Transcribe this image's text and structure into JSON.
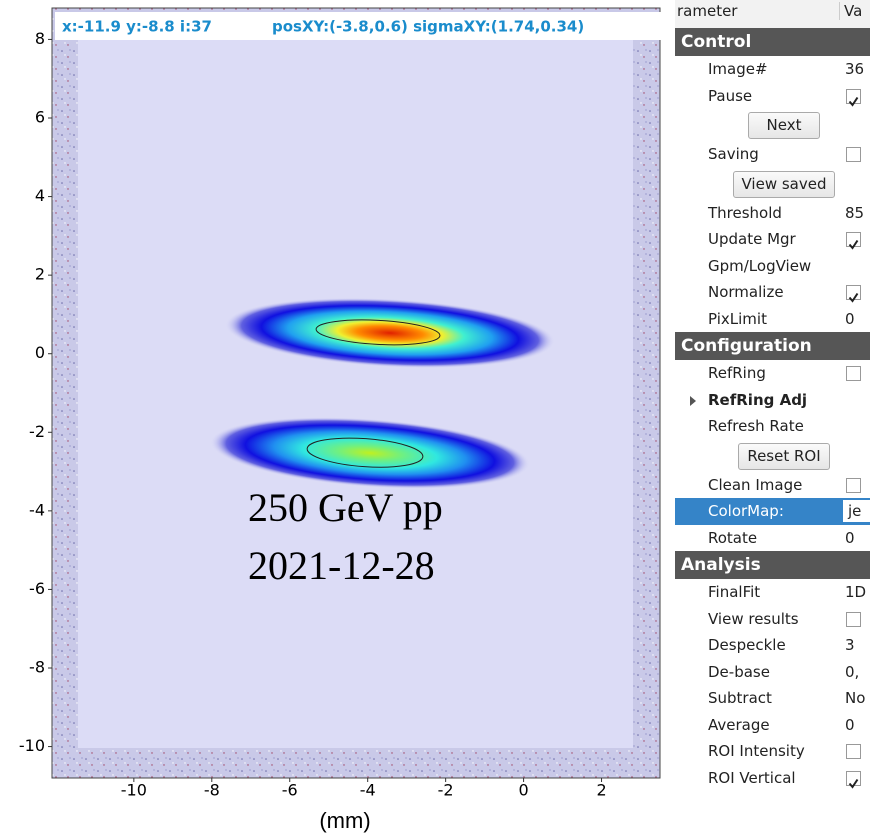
{
  "plot": {
    "info_left": "x:-11.9 y:-8.8 i:37",
    "info_right": "posXY:(-3.8,0.6) sigmaXY:(1.74,0.34)",
    "xlim": [
      -12.1,
      3.5
    ],
    "ylim": [
      -10.8,
      8.8
    ],
    "xticks": [
      -10,
      -8,
      -6,
      -4,
      -2,
      0,
      2
    ],
    "yticks": [
      8,
      6,
      4,
      2,
      0,
      -2,
      -4,
      -6,
      -8,
      -10
    ],
    "annotation": [
      "250 GeV pp",
      "2021-12-28"
    ],
    "xlabel": "(mm)"
  },
  "panel": {
    "header": [
      "rameter",
      "Va"
    ],
    "sections": [
      {
        "title": "Control",
        "rows": [
          {
            "label": "Image#",
            "value": "36"
          },
          {
            "label": "Pause",
            "checked": true
          },
          {
            "button": "Next"
          },
          {
            "label": "Saving",
            "checked": false
          },
          {
            "button": "View saved"
          },
          {
            "label": "Threshold",
            "value": "85"
          },
          {
            "label": "Update Mgr",
            "checked": true
          },
          {
            "label": "Gpm/LogView"
          },
          {
            "label": "Normalize",
            "checked": true
          },
          {
            "label": "PixLimit",
            "value": "0"
          }
        ]
      },
      {
        "title": "Configuration",
        "rows": [
          {
            "label": "RefRing",
            "checked": false
          },
          {
            "label": "RefRing Adj",
            "expandable": true
          },
          {
            "label": "Refresh Rate"
          },
          {
            "button": "Reset ROI"
          },
          {
            "label": "Clean Image",
            "checked": false
          },
          {
            "label": "ColorMap:",
            "value": "je",
            "selected": true
          },
          {
            "label": "Rotate",
            "value": "0"
          }
        ]
      },
      {
        "title": "Analysis",
        "rows": [
          {
            "label": "FinalFit",
            "value": "1D"
          },
          {
            "label": "View results",
            "checked": false
          },
          {
            "label": "Despeckle",
            "value": "3"
          },
          {
            "label": "De-base",
            "value": "0,"
          },
          {
            "label": "Subtract",
            "value": "No"
          },
          {
            "label": "Average",
            "value": "0"
          },
          {
            "label": "ROI Intensity",
            "checked": false
          },
          {
            "label": "ROI Vertical",
            "checked": true
          }
        ]
      }
    ]
  }
}
